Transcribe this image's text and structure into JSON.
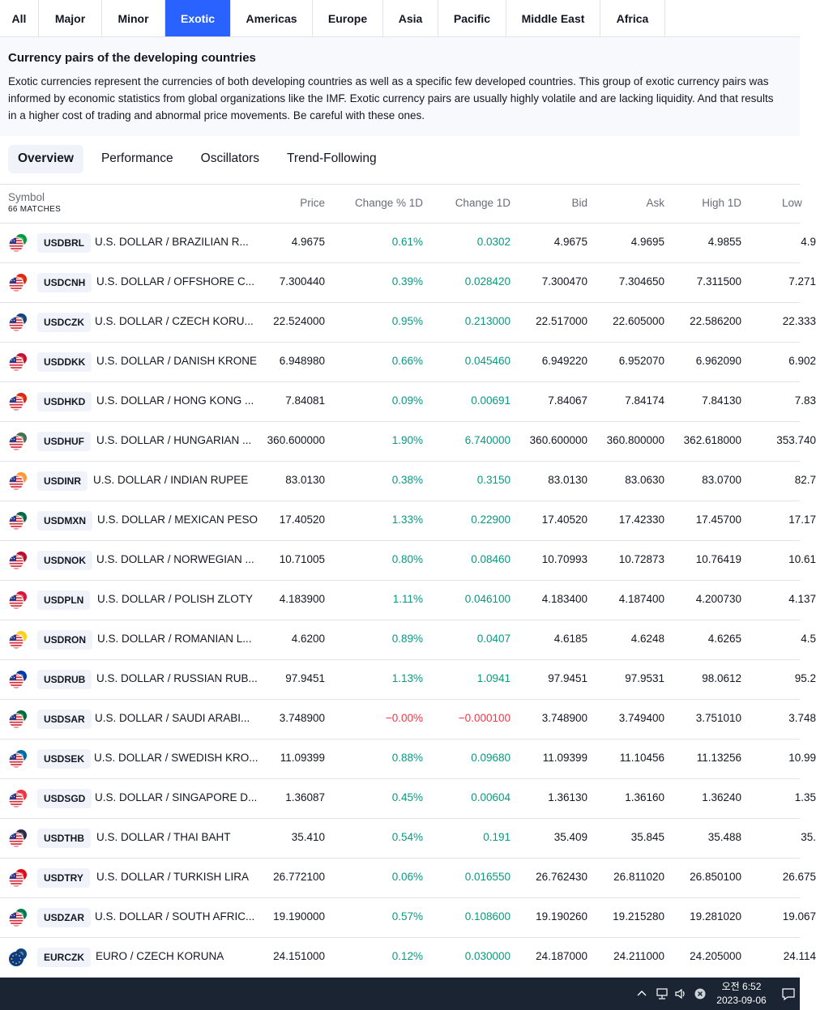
{
  "region_tabs": [
    {
      "label": "All",
      "active": false
    },
    {
      "label": "Major",
      "active": false
    },
    {
      "label": "Minor",
      "active": false
    },
    {
      "label": "Exotic",
      "active": true
    },
    {
      "label": "Americas",
      "active": false
    },
    {
      "label": "Europe",
      "active": false
    },
    {
      "label": "Asia",
      "active": false
    },
    {
      "label": "Pacific",
      "active": false
    },
    {
      "label": "Middle East",
      "active": false
    },
    {
      "label": "Africa",
      "active": false
    }
  ],
  "intro": {
    "title": "Currency pairs of the developing countries",
    "text": "Exotic currencies represent the currencies of both developing countries as well as a specific few developed countries. This group of exotic currency pairs was informed by economic statistics from global organizations like the IMF. Exotic currency pairs are usually highly volatile and are lacking liquidity. And that results in a higher cost of trading and abnormal price movements. Be careful with these ones."
  },
  "sub_tabs": [
    {
      "label": "Overview",
      "active": true
    },
    {
      "label": "Performance",
      "active": false
    },
    {
      "label": "Oscillators",
      "active": false
    },
    {
      "label": "Trend-Following",
      "active": false
    }
  ],
  "table": {
    "symbol_header": "Symbol",
    "matches": "66 MATCHES",
    "columns": {
      "price": "Price",
      "change_pct": "Change % 1D",
      "change": "Change 1D",
      "bid": "Bid",
      "ask": "Ask",
      "high": "High 1D",
      "low": "Low"
    },
    "rows": [
      {
        "ticker": "USDBRL",
        "name": "U.S. DOLLAR / BRAZILIAN R...",
        "price": "4.9675",
        "chg_pct": "0.61%",
        "chg": "0.0302",
        "bid": "4.9675",
        "ask": "4.9695",
        "high": "4.9855",
        "low": "4.9",
        "dir": "pos",
        "flag": "#009c3b"
      },
      {
        "ticker": "USDCNH",
        "name": "U.S. DOLLAR / OFFSHORE C...",
        "price": "7.300440",
        "chg_pct": "0.39%",
        "chg": "0.028420",
        "bid": "7.300470",
        "ask": "7.304650",
        "high": "7.311500",
        "low": "7.271",
        "dir": "pos",
        "flag": "#de2910"
      },
      {
        "ticker": "USDCZK",
        "name": "U.S. DOLLAR / CZECH KORU...",
        "price": "22.524000",
        "chg_pct": "0.95%",
        "chg": "0.213000",
        "bid": "22.517000",
        "ask": "22.605000",
        "high": "22.586200",
        "low": "22.333",
        "dir": "pos",
        "flag": "#11457e"
      },
      {
        "ticker": "USDDKK",
        "name": "U.S. DOLLAR / DANISH KRONE",
        "price": "6.948980",
        "chg_pct": "0.66%",
        "chg": "0.045460",
        "bid": "6.949220",
        "ask": "6.952070",
        "high": "6.962090",
        "low": "6.902",
        "dir": "pos",
        "flag": "#c8102e"
      },
      {
        "ticker": "USDHKD",
        "name": "U.S. DOLLAR / HONG KONG ...",
        "price": "7.84081",
        "chg_pct": "0.09%",
        "chg": "0.00691",
        "bid": "7.84067",
        "ask": "7.84174",
        "high": "7.84130",
        "low": "7.83",
        "dir": "pos",
        "flag": "#de2910"
      },
      {
        "ticker": "USDHUF",
        "name": "U.S. DOLLAR / HUNGARIAN ...",
        "price": "360.600000",
        "chg_pct": "1.90%",
        "chg": "6.740000",
        "bid": "360.600000",
        "ask": "360.800000",
        "high": "362.618000",
        "low": "353.740",
        "dir": "pos",
        "flag": "#477050"
      },
      {
        "ticker": "USDINR",
        "name": "U.S. DOLLAR / INDIAN RUPEE",
        "price": "83.0130",
        "chg_pct": "0.38%",
        "chg": "0.3150",
        "bid": "83.0130",
        "ask": "83.0630",
        "high": "83.0700",
        "low": "82.7",
        "dir": "pos",
        "flag": "#ff9933"
      },
      {
        "ticker": "USDMXN",
        "name": "U.S. DOLLAR / MEXICAN PESO",
        "price": "17.40520",
        "chg_pct": "1.33%",
        "chg": "0.22900",
        "bid": "17.40520",
        "ask": "17.42330",
        "high": "17.45700",
        "low": "17.17",
        "dir": "pos",
        "flag": "#006847"
      },
      {
        "ticker": "USDNOK",
        "name": "U.S. DOLLAR / NORWEGIAN ...",
        "price": "10.71005",
        "chg_pct": "0.80%",
        "chg": "0.08460",
        "bid": "10.70993",
        "ask": "10.72873",
        "high": "10.76419",
        "low": "10.61",
        "dir": "pos",
        "flag": "#ba0c2f"
      },
      {
        "ticker": "USDPLN",
        "name": "U.S. DOLLAR / POLISH ZLOTY",
        "price": "4.183900",
        "chg_pct": "1.11%",
        "chg": "0.046100",
        "bid": "4.183400",
        "ask": "4.187400",
        "high": "4.200730",
        "low": "4.137",
        "dir": "pos",
        "flag": "#dc143c"
      },
      {
        "ticker": "USDRON",
        "name": "U.S. DOLLAR / ROMANIAN L...",
        "price": "4.6200",
        "chg_pct": "0.89%",
        "chg": "0.0407",
        "bid": "4.6185",
        "ask": "4.6248",
        "high": "4.6265",
        "low": "4.5",
        "dir": "pos",
        "flag": "#fcd116"
      },
      {
        "ticker": "USDRUB",
        "name": "U.S. DOLLAR / RUSSIAN RUB...",
        "price": "97.9451",
        "chg_pct": "1.13%",
        "chg": "1.0941",
        "bid": "97.9451",
        "ask": "97.9531",
        "high": "98.0612",
        "low": "95.2",
        "dir": "pos",
        "flag": "#0039a6"
      },
      {
        "ticker": "USDSAR",
        "name": "U.S. DOLLAR / SAUDI ARABI...",
        "price": "3.748900",
        "chg_pct": "−0.00%",
        "chg": "−0.000100",
        "bid": "3.748900",
        "ask": "3.749400",
        "high": "3.751010",
        "low": "3.748",
        "dir": "neg",
        "flag": "#006c35"
      },
      {
        "ticker": "USDSEK",
        "name": "U.S. DOLLAR / SWEDISH KRO...",
        "price": "11.09399",
        "chg_pct": "0.88%",
        "chg": "0.09680",
        "bid": "11.09399",
        "ask": "11.10456",
        "high": "11.13256",
        "low": "10.99",
        "dir": "pos",
        "flag": "#006aa7"
      },
      {
        "ticker": "USDSGD",
        "name": "U.S. DOLLAR / SINGAPORE D...",
        "price": "1.36087",
        "chg_pct": "0.45%",
        "chg": "0.00604",
        "bid": "1.36130",
        "ask": "1.36160",
        "high": "1.36240",
        "low": "1.35",
        "dir": "pos",
        "flag": "#ef3340"
      },
      {
        "ticker": "USDTHB",
        "name": "U.S. DOLLAR / THAI BAHT",
        "price": "35.410",
        "chg_pct": "0.54%",
        "chg": "0.191",
        "bid": "35.409",
        "ask": "35.845",
        "high": "35.488",
        "low": "35.",
        "dir": "pos",
        "flag": "#2d2a4a"
      },
      {
        "ticker": "USDTRY",
        "name": "U.S. DOLLAR / TURKISH LIRA",
        "price": "26.772100",
        "chg_pct": "0.06%",
        "chg": "0.016550",
        "bid": "26.762430",
        "ask": "26.811020",
        "high": "26.850100",
        "low": "26.675",
        "dir": "pos",
        "flag": "#e30a17"
      },
      {
        "ticker": "USDZAR",
        "name": "U.S. DOLLAR / SOUTH AFRIC...",
        "price": "19.190000",
        "chg_pct": "0.57%",
        "chg": "0.108600",
        "bid": "19.190260",
        "ask": "19.215280",
        "high": "19.281020",
        "low": "19.067",
        "dir": "pos",
        "flag": "#007a4d"
      },
      {
        "ticker": "EURCZK",
        "name": "EURO / CZECH KORUNA",
        "price": "24.151000",
        "chg_pct": "0.12%",
        "chg": "0.030000",
        "bid": "24.187000",
        "ask": "24.211000",
        "high": "24.205000",
        "low": "24.114",
        "dir": "pos",
        "flag": "#11457e",
        "base": "eur"
      }
    ]
  },
  "taskbar": {
    "time": "오전 6:52",
    "date": "2023-09-06",
    "icons": [
      "chevron-up-icon",
      "network-icon",
      "volume-icon",
      "close-circle-icon",
      "notification-icon"
    ]
  },
  "colors": {
    "accent": "#2962ff",
    "positive": "#089981",
    "negative": "#f23645",
    "taskbar": "#1b2432"
  }
}
